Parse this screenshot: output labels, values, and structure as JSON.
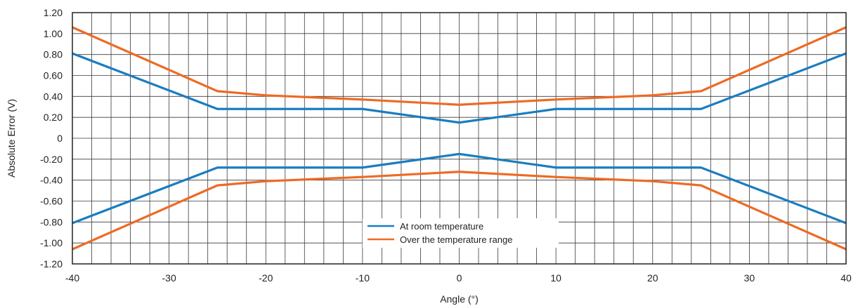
{
  "chart_data": {
    "type": "line",
    "xlabel": "Angle (°)",
    "ylabel": "Absolute Error (V)",
    "xlim": [
      -40,
      40
    ],
    "ylim": [
      -1.2,
      1.2
    ],
    "x_ticks": [
      "-40",
      "-30",
      "-20",
      "-10",
      "0",
      "10",
      "20",
      "30",
      "40"
    ],
    "y_ticks": [
      "1.20",
      "1.00",
      "0.80",
      "0.60",
      "0.40",
      "0.20",
      "0",
      "-0.20",
      "-0.40",
      "-0.60",
      "-0.80",
      "-1.00",
      "-1.20"
    ],
    "y_tick_values": [
      1.2,
      1.0,
      0.8,
      0.6,
      0.4,
      0.2,
      0,
      -0.2,
      -0.4,
      -0.6,
      -0.8,
      -1.0,
      -1.2
    ],
    "grid": true,
    "legend_position": "bottom-center",
    "series": [
      {
        "name": "At room temperature",
        "color": "#1a7dc0",
        "x": [
          -40,
          -25,
          -10,
          0,
          10,
          25,
          40
        ],
        "y": [
          0.81,
          0.28,
          0.28,
          0.15,
          0.28,
          0.28,
          0.81
        ]
      },
      {
        "name": "",
        "color": "#1a7dc0",
        "x": [
          -40,
          -25,
          -10,
          0,
          10,
          25,
          40
        ],
        "y": [
          -0.81,
          -0.28,
          -0.28,
          -0.15,
          -0.28,
          -0.28,
          -0.81
        ]
      },
      {
        "name": "Over the temperature range",
        "color": "#ee6a24",
        "x": [
          -40,
          -25,
          -20,
          -10,
          0,
          10,
          20,
          25,
          40
        ],
        "y": [
          1.06,
          0.45,
          0.41,
          0.37,
          0.32,
          0.37,
          0.41,
          0.45,
          1.06
        ]
      },
      {
        "name": "",
        "color": "#ee6a24",
        "x": [
          -40,
          -25,
          -20,
          -10,
          0,
          10,
          20,
          25,
          40
        ],
        "y": [
          -1.06,
          -0.45,
          -0.41,
          -0.37,
          -0.32,
          -0.37,
          -0.41,
          -0.45,
          -1.06
        ]
      }
    ]
  }
}
